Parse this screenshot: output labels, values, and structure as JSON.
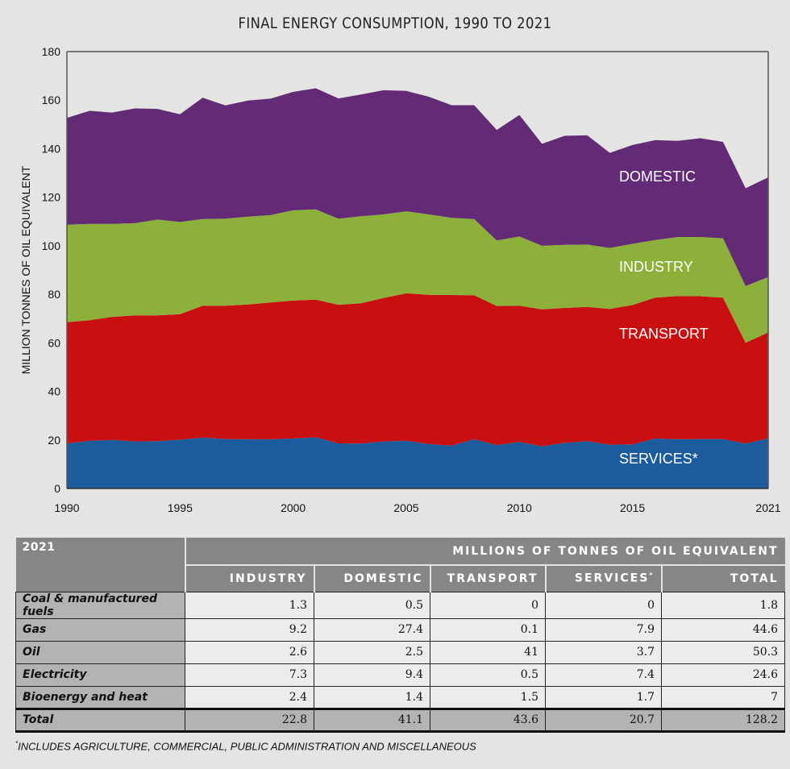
{
  "chart_data": {
    "type": "area",
    "stacked": true,
    "title": "FINAL ENERGY CONSUMPTION, 1990 TO 2021",
    "xlabel": "",
    "ylabel": "MILLION TONNES OF OIL EQUIVALENT",
    "ylim": [
      0,
      180
    ],
    "xlim": [
      1990,
      2021
    ],
    "grid": false,
    "x_ticks": [
      "1990",
      "1995",
      "2000",
      "2005",
      "2010",
      "2015",
      "2021"
    ],
    "y_ticks": [
      "0",
      "20",
      "40",
      "60",
      "80",
      "100",
      "120",
      "140",
      "160",
      "180"
    ],
    "x": [
      1990,
      1991,
      1992,
      1993,
      1994,
      1995,
      1996,
      1997,
      1998,
      1999,
      2000,
      2001,
      2002,
      2003,
      2004,
      2005,
      2006,
      2007,
      2008,
      2009,
      2010,
      2011,
      2012,
      2013,
      2014,
      2015,
      2016,
      2017,
      2018,
      2019,
      2020,
      2021
    ],
    "series": [
      {
        "name": "SERVICES*",
        "color": "#1c5b9c",
        "values": [
          18.5,
          19.7,
          20.0,
          19.4,
          19.5,
          20.1,
          21.0,
          20.4,
          20.3,
          20.3,
          20.6,
          21.1,
          18.6,
          18.5,
          19.4,
          19.7,
          18.3,
          17.7,
          20.3,
          17.9,
          19.2,
          17.4,
          18.8,
          19.5,
          18.0,
          18.2,
          20.6,
          20.3,
          20.4,
          20.4,
          18.5,
          20.7
        ]
      },
      {
        "name": "TRANSPORT",
        "color": "#c81010",
        "values": [
          50.0,
          49.6,
          50.7,
          51.9,
          51.8,
          51.7,
          54.3,
          54.9,
          55.5,
          56.3,
          56.8,
          56.7,
          57.1,
          57.8,
          59.1,
          60.7,
          61.5,
          62.0,
          59.3,
          57.3,
          56.1,
          56.4,
          55.6,
          55.3,
          56.0,
          57.4,
          58.0,
          59.0,
          58.8,
          58.2,
          41.5,
          43.6
        ]
      },
      {
        "name": "INDUSTRY",
        "color": "#8db03b",
        "values": [
          40.2,
          39.7,
          38.3,
          38.0,
          39.5,
          38.0,
          35.7,
          35.9,
          36.2,
          36.0,
          37.2,
          37.2,
          35.5,
          35.9,
          34.4,
          33.8,
          33.1,
          31.8,
          31.4,
          27.0,
          28.5,
          26.2,
          26.0,
          25.7,
          25.1,
          25.2,
          23.8,
          24.3,
          24.4,
          24.5,
          23.4,
          22.8
        ]
      },
      {
        "name": "DOMESTIC",
        "color": "#632a76",
        "values": [
          44.0,
          46.6,
          45.9,
          47.3,
          45.6,
          44.4,
          50.0,
          46.6,
          47.8,
          48.0,
          48.8,
          49.9,
          49.5,
          50.1,
          51.2,
          49.6,
          48.5,
          46.4,
          46.9,
          45.5,
          50.1,
          42.0,
          44.9,
          45.0,
          39.2,
          40.7,
          41.1,
          39.6,
          40.7,
          39.7,
          40.3,
          41.1
        ]
      }
    ]
  },
  "table": {
    "year": "2021",
    "unit_header": "MILLIONS OF TONNES OF OIL EQUIVALENT",
    "columns": [
      "INDUSTRY",
      "DOMESTIC",
      "TRANSPORT",
      "SERVICES",
      "TOTAL"
    ],
    "services_marker": "*",
    "rows": [
      {
        "label": "Coal & manufactured fuels",
        "values": [
          "1.3",
          "0.5",
          "0",
          "0",
          "1.8"
        ]
      },
      {
        "label": "Gas",
        "values": [
          "9.2",
          "27.4",
          "0.1",
          "7.9",
          "44.6"
        ]
      },
      {
        "label": "Oil",
        "values": [
          "2.6",
          "2.5",
          "41",
          "3.7",
          "50.3"
        ]
      },
      {
        "label": "Electricity",
        "values": [
          "7.3",
          "9.4",
          "0.5",
          "7.4",
          "24.6"
        ]
      },
      {
        "label": "Bioenergy and heat",
        "values": [
          "2.4",
          "1.4",
          "1.5",
          "1.7",
          "7"
        ]
      }
    ],
    "total": {
      "label": "Total",
      "values": [
        "22.8",
        "41.1",
        "43.6",
        "20.7",
        "128.2"
      ]
    }
  },
  "footnote": {
    "marker": "*",
    "text": "INCLUDES AGRICULTURE, COMMERCIAL, PUBLIC ADMINISTRATION AND MISCELLANEOUS"
  }
}
